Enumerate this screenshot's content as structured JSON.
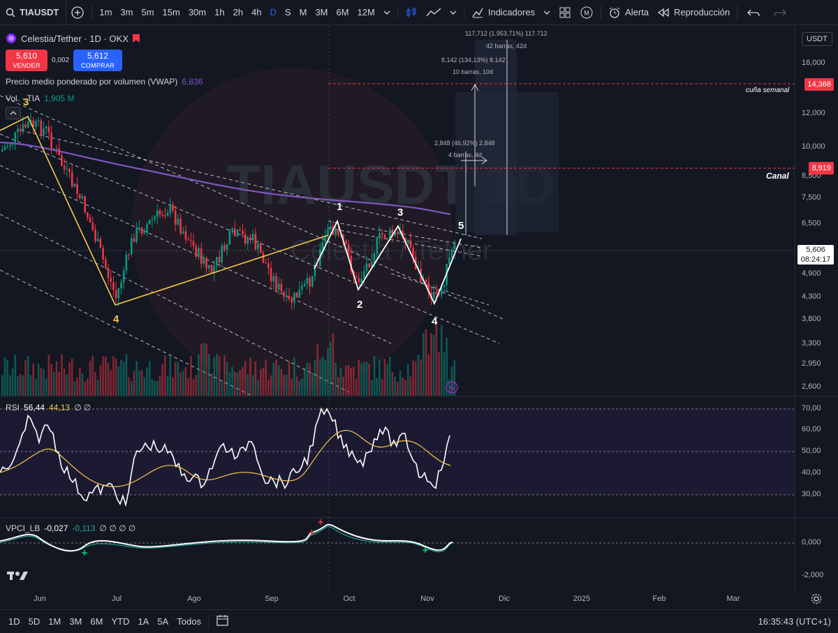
{
  "toolbar": {
    "symbol": "TIAUSDT",
    "intervals": [
      "1m",
      "3m",
      "5m",
      "15m",
      "30m",
      "1h",
      "2h",
      "4h",
      "D",
      "S",
      "M",
      "3M",
      "6M",
      "12M"
    ],
    "active_interval": "D",
    "indicators_label": "Indicadores",
    "alert_label": "Alerta",
    "replay_label": "Reproducción"
  },
  "legend": {
    "title": "Celestia/Tether · 1D · OKX",
    "sell_price": "5,610",
    "sell_label": "VENDER",
    "spread": "0,002",
    "buy_price": "5,612",
    "buy_label": "COMPRAR",
    "vwap_label": "Precio medio ponderado por volumen (VWAP)",
    "vwap_value": "6,836",
    "vol_label": "Vol. · TIA",
    "vol_value": "1,905 M"
  },
  "price_scale": {
    "currency": "USDT",
    "labels": [
      "16,000",
      "12,000",
      "10,000",
      "8,500",
      "7,500",
      "6,500",
      "4,900",
      "4,300",
      "3,800",
      "3,300",
      "2,950",
      "2,600"
    ],
    "current_price": "5,606",
    "countdown": "08:24:17",
    "tag_top": "14,368",
    "tag_canal": "8,919"
  },
  "annotations": {
    "wedge_label": "cuña semanal",
    "canal_label": "Canal",
    "measure_large_1": "117,712 (1.953,71%) 117.712",
    "measure_large_2": "42 barras, 42d",
    "measure_mid_1": "8,142 (134,13%) 8.142",
    "measure_mid_2": "10 barras, 10d",
    "measure_small_1": "2,848 (46,92%) 2.848",
    "measure_small_2": "4 barras, 4d",
    "watermark": "TIAUSDT 1D",
    "watermark_sub": "Celestia / Tether",
    "yellow_wave": [
      "3",
      "4"
    ],
    "white_wave": [
      "1",
      "2",
      "3",
      "4",
      "5"
    ]
  },
  "rsi": {
    "label": "RSI",
    "value1": "56,44",
    "value2": "44,13",
    "extras": "∅ ∅",
    "scale": [
      "70,00",
      "60,00",
      "50,00",
      "40,00",
      "30,00"
    ]
  },
  "vpci": {
    "label": "VPCI_LB",
    "value1": "-0,027",
    "value2": "-0,113",
    "extras": "∅ ∅ ∅ ∅",
    "scale": [
      "0,000",
      "-2,000"
    ]
  },
  "date_axis": [
    "Jun",
    "Jul",
    "Ago",
    "Sep",
    "Oct",
    "Nov",
    "Dic",
    "2025",
    "Feb",
    "Mar"
  ],
  "bottom": {
    "ranges": [
      "1D",
      "5D",
      "1M",
      "3M",
      "6M",
      "YTD",
      "1A",
      "5A",
      "Todos"
    ],
    "clock": "16:35:43 (UTC+1)"
  },
  "colors": {
    "background": "#131722",
    "up": "#089981",
    "down": "#f23645",
    "vwap": "#7e57c2",
    "accent": "#2962ff",
    "wave_yellow": "#f7c948",
    "wave_white": "#ffffff"
  }
}
